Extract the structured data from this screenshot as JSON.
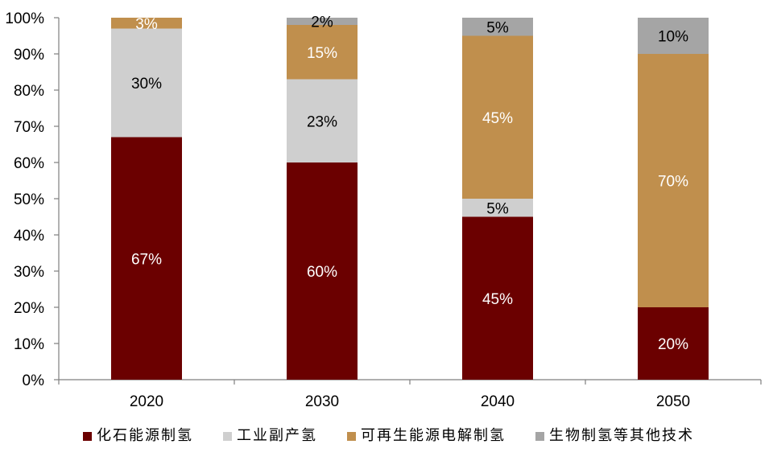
{
  "chart_data": {
    "type": "bar",
    "stacked": true,
    "categories": [
      "2020",
      "2030",
      "2040",
      "2050"
    ],
    "series": [
      {
        "name": "化石能源制氢",
        "values": [
          67,
          60,
          45,
          20
        ],
        "color": "#6b0000",
        "label_color": "#ffffff",
        "labels": [
          "67%",
          "60%",
          "45%",
          "20%"
        ]
      },
      {
        "name": "工业副产氢",
        "values": [
          30,
          23,
          5,
          0
        ],
        "color": "#cfcfcf",
        "label_color": "#000000",
        "labels": [
          "30%",
          "23%",
          "5%",
          ""
        ]
      },
      {
        "name": "可再生能源电解制氢",
        "values": [
          3,
          15,
          45,
          70
        ],
        "color": "#c08f4d",
        "label_color": "#ffffff",
        "labels": [
          "3%",
          "15%",
          "45%",
          "70%"
        ]
      },
      {
        "name": "生物制氢等其他技术",
        "values": [
          0,
          2,
          5,
          10
        ],
        "color": "#a5a5a5",
        "label_color": "#000000",
        "labels": [
          "",
          "2%",
          "5%",
          "10%"
        ]
      }
    ],
    "y_ticks": [
      "0%",
      "10%",
      "20%",
      "30%",
      "40%",
      "50%",
      "60%",
      "70%",
      "80%",
      "90%",
      "100%"
    ],
    "ylim": [
      0,
      100
    ],
    "grid": false,
    "legend_position": "bottom",
    "title": "",
    "xlabel": "",
    "ylabel": ""
  }
}
